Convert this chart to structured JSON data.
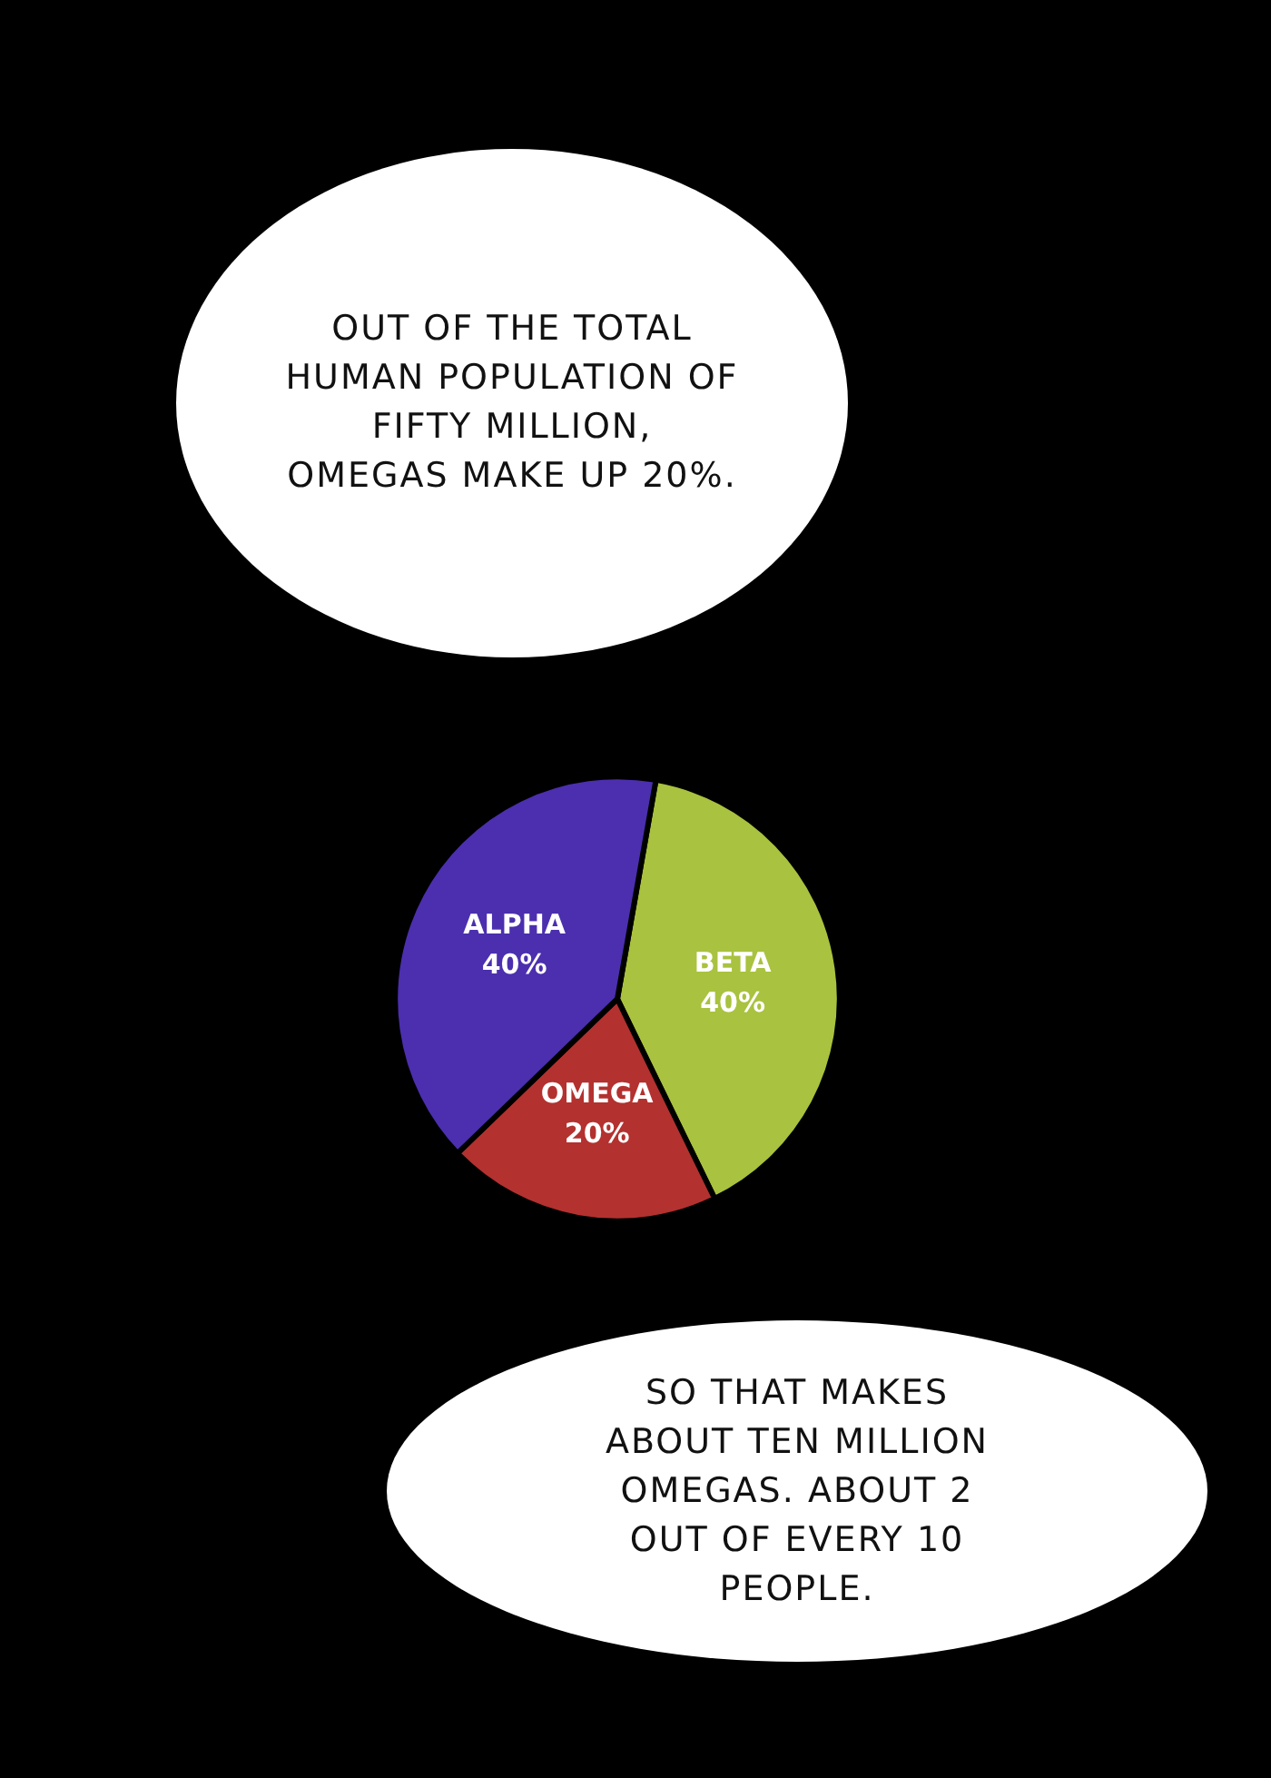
{
  "chart_data": {
    "type": "pie",
    "categories": [
      "BETA",
      "OMEGA",
      "ALPHA"
    ],
    "values": [
      40,
      20,
      40
    ],
    "colors": [
      "#a9c23f",
      "#b3312f",
      "#4b2fae"
    ],
    "value_labels": [
      "40%",
      "20%",
      "40%"
    ],
    "annotations": [
      "OUT OF THE TOTAL HUMAN POPULATION OF FIFTY MILLION, OMEGAS MAKE UP 20%.",
      "SO THAT MAKES ABOUT TEN MILLION OMEGAS. ABOUT 2 OUT OF EVERY 10 PEOPLE."
    ],
    "legend": false
  }
}
